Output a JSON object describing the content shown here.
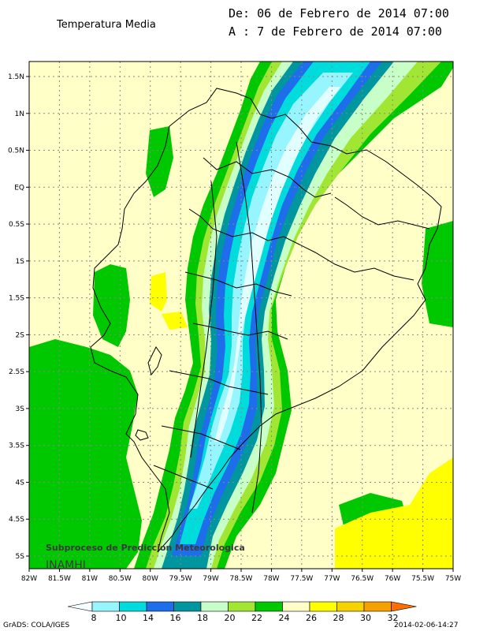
{
  "header": {
    "title": "Temperatura Media",
    "from_line": "De: 06 de Febrero de 2014 07:00",
    "to_line": "A : 7 de Febrero de 2014 07:00"
  },
  "map": {
    "lat_labels": [
      "1.5N",
      "1N",
      "0.5N",
      "EQ",
      "0.5S",
      "1S",
      "1.5S",
      "2S",
      "2.5S",
      "3S",
      "3.5S",
      "4S",
      "4.5S",
      "5S"
    ],
    "lon_labels": [
      "82W",
      "81.5W",
      "81W",
      "80.5W",
      "80W",
      "79.5W",
      "79W",
      "78.5W",
      "78W",
      "77.5W",
      "77W",
      "76.5W",
      "76W",
      "75.5W",
      "75W"
    ],
    "colors": {
      "lt24": "#ffffc8",
      "c24": "#00c800",
      "c22": "#a0e632",
      "c20": "#c8ffc8",
      "c18": "#0096a0",
      "c16": "#1e6eeb",
      "c14": "#00dcdc",
      "c10": "#96f5ff",
      "c8": "#e1ffff",
      "c26": "#ffff00"
    },
    "watermark_line1": "Subproceso de Prediccion Meteorologica",
    "watermark_line2": "INAMHI"
  },
  "colorbar": {
    "labels": [
      "8",
      "10",
      "14",
      "16",
      "18",
      "20",
      "22",
      "24",
      "26",
      "28",
      "30",
      "32"
    ],
    "colors": [
      "#f5ffff",
      "#96f5ff",
      "#00dcdc",
      "#1e6eeb",
      "#0096a0",
      "#c8ffc8",
      "#a0e632",
      "#00c800",
      "#ffffc8",
      "#ffff00",
      "#f5d200",
      "#f5a000",
      "#ff6e00"
    ]
  },
  "footer": {
    "grads": "GrADS: COLA/IGES",
    "timestamp": "2014-02-06-14:27"
  }
}
